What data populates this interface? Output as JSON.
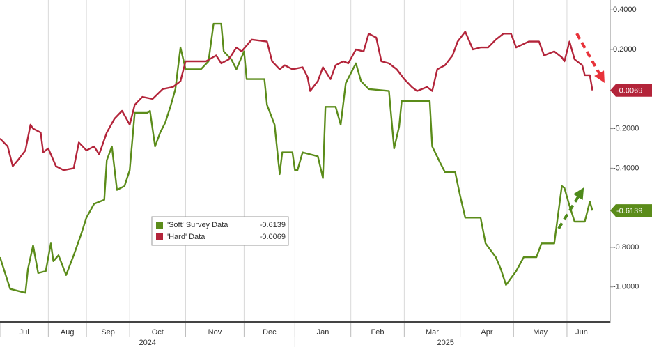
{
  "chart_data": {
    "type": "line",
    "series": [
      {
        "name": "'Soft' Survey Data",
        "color": "#5b8c1a",
        "x": [
          0,
          2,
          4,
          7,
          10,
          11,
          13,
          15,
          18,
          20,
          21,
          23,
          26,
          29,
          32,
          34,
          37,
          41,
          42,
          44,
          46,
          49,
          51,
          53,
          58,
          59,
          61,
          63,
          65,
          67,
          69,
          71,
          73,
          77,
          79,
          82,
          84,
          87,
          88,
          91,
          93,
          96,
          97,
          104,
          105,
          108,
          110,
          111,
          115,
          116,
          117,
          119,
          125,
          127,
          128,
          132,
          134,
          136,
          140,
          142,
          145,
          153,
          155,
          157,
          158,
          163,
          169,
          170,
          173,
          175,
          179,
          181,
          183,
          189,
          191,
          195,
          197,
          199,
          203,
          206,
          211,
          213,
          218,
          221,
          222,
          224,
          226,
          230,
          232,
          233
        ],
        "values": [
          -0.85,
          -0.93,
          -1.01,
          -1.02,
          -1.03,
          -0.91,
          -0.79,
          -0.93,
          -0.92,
          -0.78,
          -0.87,
          -0.84,
          -0.94,
          -0.84,
          -0.73,
          -0.65,
          -0.58,
          -0.56,
          -0.36,
          -0.29,
          -0.51,
          -0.49,
          -0.41,
          -0.12,
          -0.12,
          -0.11,
          -0.29,
          -0.22,
          -0.17,
          -0.09,
          0.0,
          0.21,
          0.1,
          0.1,
          0.1,
          0.14,
          0.33,
          0.33,
          0.19,
          0.15,
          0.1,
          0.19,
          0.05,
          0.05,
          -0.08,
          -0.18,
          -0.43,
          -0.32,
          -0.32,
          -0.41,
          -0.41,
          -0.32,
          -0.34,
          -0.45,
          -0.09,
          -0.09,
          -0.18,
          0.03,
          0.13,
          0.04,
          0.0,
          -0.01,
          -0.3,
          -0.19,
          -0.06,
          -0.06,
          -0.06,
          -0.29,
          -0.37,
          -0.42,
          -0.42,
          -0.54,
          -0.65,
          -0.65,
          -0.78,
          -0.85,
          -0.91,
          -0.99,
          -0.92,
          -0.85,
          -0.85,
          -0.78,
          -0.78,
          -0.49,
          -0.5,
          -0.59,
          -0.67,
          -0.67,
          -0.57,
          -0.6139
        ]
      },
      {
        "name": "'Hard' Data",
        "color": "#b3243a",
        "x": [
          0,
          3,
          5,
          7,
          10,
          12,
          13,
          16,
          17,
          19,
          22,
          25,
          29,
          31,
          34,
          37,
          39,
          42,
          45,
          48,
          51,
          53,
          56,
          60,
          64,
          68,
          71,
          73,
          75,
          81,
          85,
          87,
          90,
          93,
          95,
          99,
          105,
          107,
          110,
          112,
          115,
          119,
          121,
          122,
          125,
          127,
          130,
          132,
          135,
          137,
          140,
          143,
          145,
          148,
          150,
          153,
          156,
          159,
          162,
          164,
          168,
          170,
          172,
          175,
          178,
          180,
          183,
          186,
          189,
          192,
          195,
          198,
          201,
          203,
          208,
          212,
          214,
          218,
          221,
          222,
          224,
          226,
          229,
          230,
          232,
          233
        ],
        "values": [
          -0.25,
          -0.29,
          -0.39,
          -0.36,
          -0.31,
          -0.18,
          -0.2,
          -0.22,
          -0.32,
          -0.3,
          -0.39,
          -0.41,
          -0.4,
          -0.27,
          -0.31,
          -0.29,
          -0.33,
          -0.22,
          -0.15,
          -0.11,
          -0.18,
          -0.08,
          -0.04,
          -0.05,
          0.0,
          0.01,
          0.04,
          0.14,
          0.14,
          0.14,
          0.17,
          0.13,
          0.15,
          0.21,
          0.19,
          0.25,
          0.24,
          0.14,
          0.1,
          0.12,
          0.1,
          0.11,
          0.06,
          -0.01,
          0.04,
          0.11,
          0.05,
          0.12,
          0.14,
          0.13,
          0.2,
          0.19,
          0.28,
          0.26,
          0.14,
          0.13,
          0.1,
          0.05,
          0.01,
          -0.01,
          0.01,
          -0.01,
          0.1,
          0.12,
          0.17,
          0.24,
          0.29,
          0.2,
          0.21,
          0.21,
          0.25,
          0.28,
          0.28,
          0.21,
          0.24,
          0.24,
          0.17,
          0.19,
          0.16,
          0.14,
          0.24,
          0.15,
          0.12,
          0.07,
          0.07,
          -0.0069
        ]
      }
    ],
    "xlim": [
      0,
      240
    ],
    "xticks": [
      {
        "value": 0,
        "label": "Jul"
      },
      {
        "value": 19,
        "label": "Aug"
      },
      {
        "value": 34,
        "label": "Sep"
      },
      {
        "value": 51,
        "label": "Oct"
      },
      {
        "value": 73,
        "label": "Nov"
      },
      {
        "value": 96,
        "label": "Dec"
      },
      {
        "value": 116,
        "label": "Jan"
      },
      {
        "value": 138,
        "label": "Feb"
      },
      {
        "value": 159,
        "label": "Mar"
      },
      {
        "value": 181,
        "label": "Apr"
      },
      {
        "value": 202,
        "label": "May"
      },
      {
        "value": 223,
        "label": "Jun"
      }
    ],
    "years": [
      "2024",
      "2025"
    ],
    "ylim": [
      -1.17,
      0.45
    ],
    "yticks": [
      {
        "value": 0.4,
        "label": "0.4000"
      },
      {
        "value": 0.2,
        "label": "0.2000"
      },
      {
        "value": -0.2,
        "label": "-0.2000"
      },
      {
        "value": -0.4,
        "label": "-0.4000"
      },
      {
        "value": -0.8,
        "label": "-0.8000"
      },
      {
        "value": -1.0,
        "label": "-1.0000"
      }
    ],
    "grid": true
  }
}
